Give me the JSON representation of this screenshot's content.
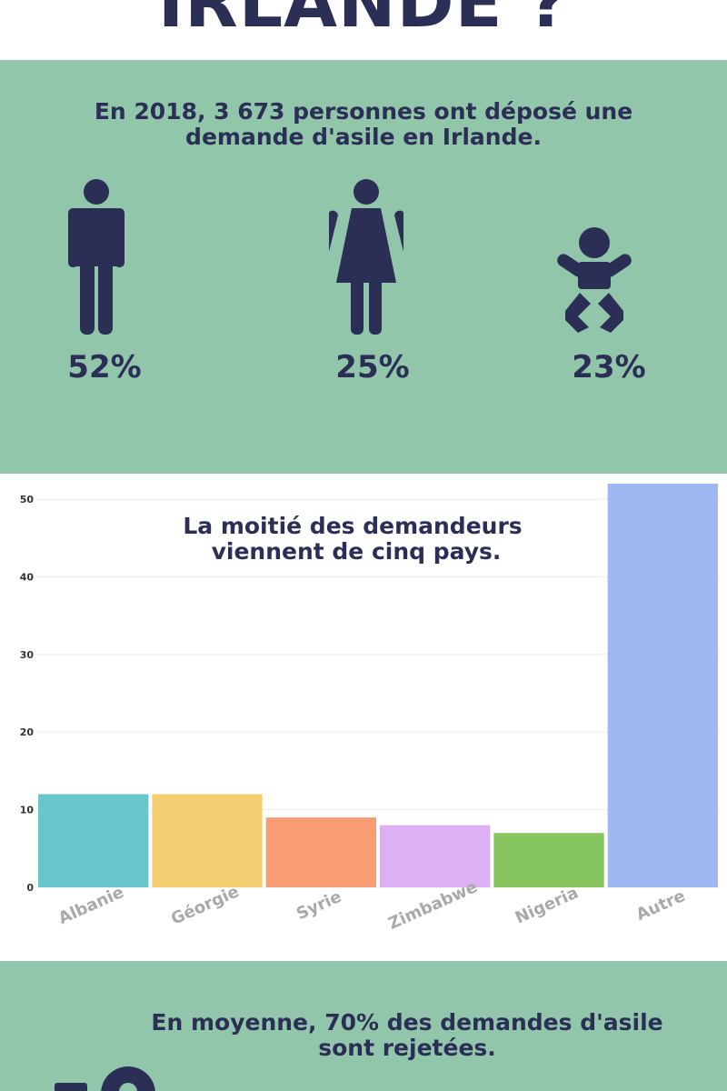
{
  "header": {
    "title_partial": "IRLANDE ?"
  },
  "demographics": {
    "headline_line1": "En 2018, 3 673 personnes ont déposé une",
    "headline_line2": "demande d'asile en Irlande.",
    "groups": [
      {
        "icon": "man-icon",
        "percent": "52%",
        "value": 52
      },
      {
        "icon": "woman-icon",
        "percent": "25%",
        "value": 25
      },
      {
        "icon": "baby-icon",
        "percent": "23%",
        "value": 23
      }
    ]
  },
  "chart_data": {
    "type": "bar",
    "title_line1": "La moitié des demandeurs",
    "title_line2": "viennent de cinq pays.",
    "categories": [
      "Albanie",
      "Géorgie",
      "Syrie",
      "Zimbabwe",
      "Nigeria",
      "Autre"
    ],
    "values": [
      12,
      12,
      9,
      8,
      7,
      52
    ],
    "colors": [
      "#68c5cc",
      "#f4cf72",
      "#f89c74",
      "#dcb0f2",
      "#87c55f",
      "#9fb8f4"
    ],
    "ylim": [
      0,
      52
    ],
    "yticks": [
      0,
      10,
      20,
      30,
      40,
      50
    ],
    "grid": true,
    "xlabel": "",
    "ylabel": ""
  },
  "rejection": {
    "headline_line1": "En moyenne, 70% des demandes d'asile",
    "headline_line2": "sont rejetées."
  },
  "colors": {
    "navy": "#2c2f55",
    "green": "#91c6ab"
  }
}
